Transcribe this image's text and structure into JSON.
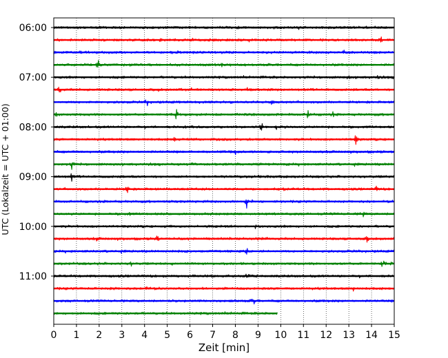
{
  "chart_data": {
    "type": "line",
    "title": "",
    "xlabel": "Zeit  [min]",
    "ylabel": "UTC (Lokalzeit = UTC + 01:00)",
    "xlim": [
      0,
      15
    ],
    "x_ticks": [
      "0",
      "1",
      "2",
      "3",
      "4",
      "5",
      "6",
      "7",
      "8",
      "9",
      "10",
      "11",
      "12",
      "13",
      "14",
      "15"
    ],
    "y_tick_labels": [
      "06:00",
      "07:00",
      "08:00",
      "09:00",
      "10:00",
      "11:00"
    ],
    "grid": "vertical-dotted",
    "trace_colors": [
      "#000000",
      "#ff0000",
      "#0000ff",
      "#008000"
    ],
    "traces": [
      {
        "start": "06:00",
        "end_min": 15,
        "events": [
          {
            "t": 9.8,
            "a": 0.25
          }
        ]
      },
      {
        "start": "06:15",
        "end_min": 15,
        "events": [
          {
            "t": 14.4,
            "a": 0.8
          },
          {
            "t": 4.7,
            "a": 0.3
          }
        ]
      },
      {
        "start": "06:30",
        "end_min": 15,
        "events": [
          {
            "t": 12.8,
            "a": 0.25
          }
        ]
      },
      {
        "start": "06:45",
        "end_min": 15,
        "events": [
          {
            "t": 1.95,
            "a": 1.0
          },
          {
            "t": 7.4,
            "a": 0.25
          }
        ]
      },
      {
        "start": "07:00",
        "end_min": 15,
        "events": [
          {
            "t": 14.3,
            "a": 0.3
          },
          {
            "t": 13.0,
            "a": 0.25
          }
        ]
      },
      {
        "start": "07:15",
        "end_min": 15,
        "events": [
          {
            "t": 0.25,
            "a": 1.0
          },
          {
            "t": 4.6,
            "a": 0.3
          }
        ]
      },
      {
        "start": "07:30",
        "end_min": 15,
        "events": [
          {
            "t": 4.1,
            "a": 1.0
          },
          {
            "t": 9.6,
            "a": 0.3
          }
        ]
      },
      {
        "start": "07:45",
        "end_min": 15,
        "events": [
          {
            "t": 0.1,
            "a": 0.4
          },
          {
            "t": 5.4,
            "a": 0.9
          },
          {
            "t": 11.2,
            "a": 1.2
          },
          {
            "t": 12.3,
            "a": 0.45
          }
        ]
      },
      {
        "start": "08:00",
        "end_min": 15,
        "events": [
          {
            "t": 9.15,
            "a": 1.0
          },
          {
            "t": 9.8,
            "a": 0.35
          }
        ]
      },
      {
        "start": "08:15",
        "end_min": 15,
        "events": [
          {
            "t": 13.3,
            "a": 1.0
          },
          {
            "t": 5.3,
            "a": 0.45
          }
        ]
      },
      {
        "start": "08:30",
        "end_min": 15,
        "events": [
          {
            "t": 8.0,
            "a": 0.6
          }
        ]
      },
      {
        "start": "08:45",
        "end_min": 15,
        "events": [
          {
            "t": 0.8,
            "a": 0.9
          },
          {
            "t": 6.1,
            "a": 0.45
          }
        ]
      },
      {
        "start": "09:00",
        "end_min": 15,
        "events": [
          {
            "t": 0.8,
            "a": 0.9
          },
          {
            "t": 9.1,
            "a": 0.3
          }
        ]
      },
      {
        "start": "09:15",
        "end_min": 15,
        "events": [
          {
            "t": 3.25,
            "a": 0.9
          },
          {
            "t": 14.2,
            "a": 0.5
          }
        ]
      },
      {
        "start": "09:30",
        "end_min": 15,
        "events": [
          {
            "t": 8.5,
            "a": 1.1
          }
        ]
      },
      {
        "start": "09:45",
        "end_min": 15,
        "events": [
          {
            "t": 3.3,
            "a": 0.5
          },
          {
            "t": 13.6,
            "a": 1.0
          }
        ]
      },
      {
        "start": "10:00",
        "end_min": 15,
        "events": [
          {
            "t": 8.9,
            "a": 0.45
          }
        ]
      },
      {
        "start": "10:15",
        "end_min": 15,
        "events": [
          {
            "t": 1.9,
            "a": 0.4
          },
          {
            "t": 4.55,
            "a": 0.9
          },
          {
            "t": 13.8,
            "a": 0.45
          }
        ]
      },
      {
        "start": "10:30",
        "end_min": 15,
        "events": [
          {
            "t": 8.5,
            "a": 0.8
          }
        ]
      },
      {
        "start": "10:45",
        "end_min": 15,
        "events": [
          {
            "t": 3.4,
            "a": 0.4
          },
          {
            "t": 14.5,
            "a": 0.9
          }
        ]
      },
      {
        "start": "11:00",
        "end_min": 15,
        "events": [
          {
            "t": 8.5,
            "a": 0.8
          }
        ]
      },
      {
        "start": "11:15",
        "end_min": 15,
        "events": [
          {
            "t": 2.6,
            "a": 0.45
          },
          {
            "t": 4.1,
            "a": 0.8
          },
          {
            "t": 13.2,
            "a": 0.5
          }
        ]
      },
      {
        "start": "11:30",
        "end_min": 15,
        "events": [
          {
            "t": 8.8,
            "a": 0.8
          }
        ]
      },
      {
        "start": "11:45",
        "end_min": 9.85,
        "events": [
          {
            "t": 3.7,
            "a": 0.2
          }
        ]
      }
    ]
  }
}
